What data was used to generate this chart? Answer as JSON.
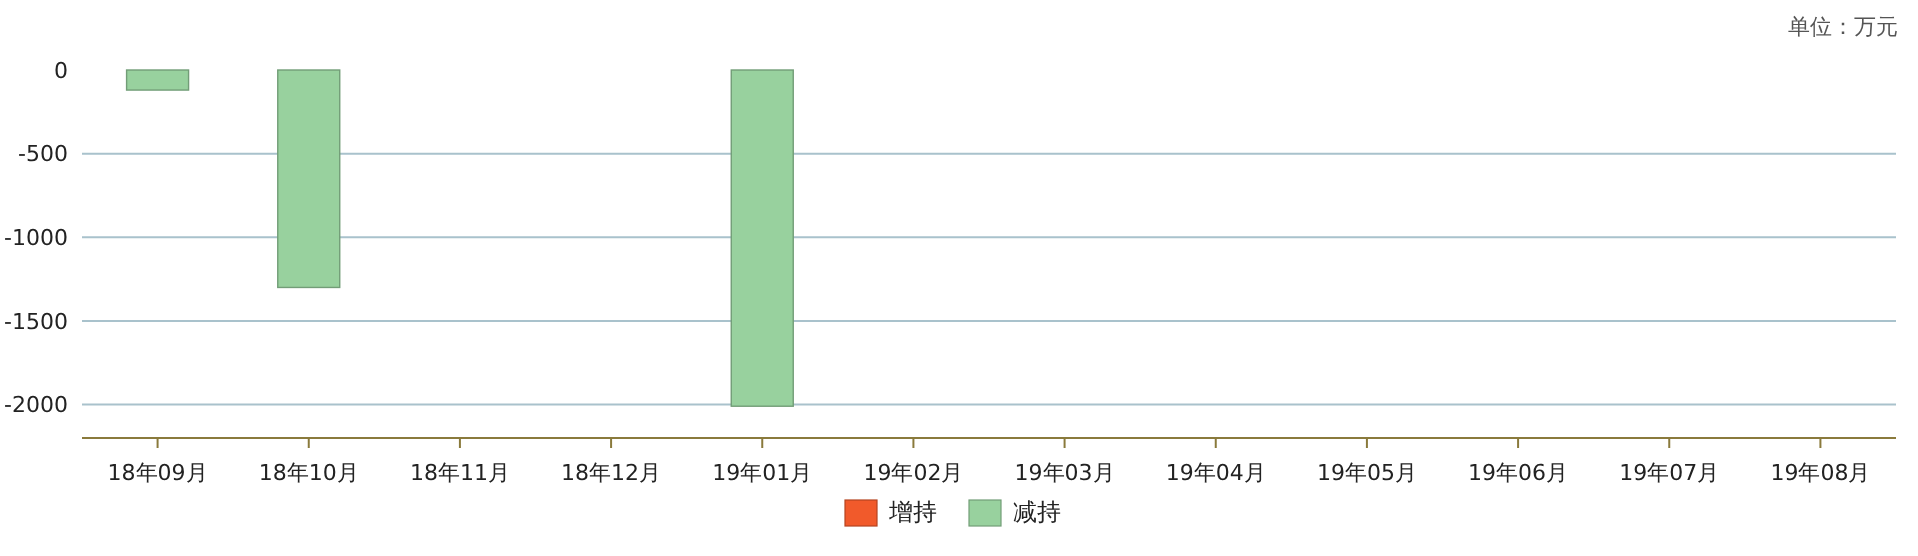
{
  "chart_data": {
    "type": "bar",
    "categories": [
      "18年09月",
      "18年10月",
      "18年11月",
      "18年12月",
      "19年01月",
      "19年02月",
      "19年03月",
      "19年04月",
      "19年05月",
      "19年06月",
      "19年07月",
      "19年08月"
    ],
    "series": [
      {
        "name": "增持",
        "color": "#f15a2b",
        "values": [
          null,
          null,
          null,
          null,
          null,
          null,
          null,
          null,
          null,
          null,
          null,
          null
        ]
      },
      {
        "name": "减持",
        "color": "#98d19e",
        "values": [
          -120,
          -1300,
          null,
          null,
          -2010,
          null,
          null,
          null,
          null,
          null,
          null,
          null
        ]
      }
    ],
    "stacked": true,
    "ylim": [
      -2200,
      0
    ],
    "yticks": [
      0,
      -500,
      -1000,
      -1500,
      -2000
    ],
    "grid": "y",
    "legend": "bottom",
    "annotations": [
      "单位：万元"
    ]
  }
}
